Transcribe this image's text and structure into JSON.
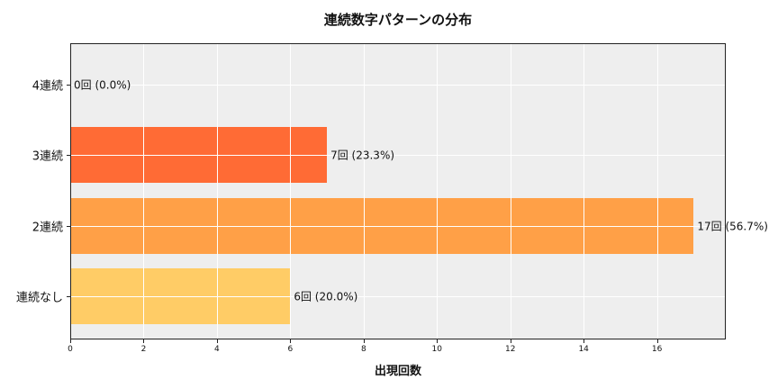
{
  "chart_data": {
    "type": "bar",
    "orientation": "horizontal",
    "title": "連続数字パターンの分布",
    "xlabel": "出現回数",
    "ylabel": "",
    "categories": [
      "4連続",
      "3連続",
      "2連続",
      "連続なし"
    ],
    "values": [
      0,
      7,
      17,
      6
    ],
    "percentages": [
      0.0,
      23.3,
      56.7,
      20.0
    ],
    "data_labels": [
      "0回 (0.0%)",
      "7回 (23.3%)",
      "17回 (56.7%)",
      "6回 (20.0%)"
    ],
    "colors": [
      "#FF4F1F",
      "#FF6B35",
      "#FFA047",
      "#FFCC66"
    ],
    "xlim": [
      0,
      17.85
    ],
    "xticks": [
      0,
      2,
      4,
      6,
      8,
      10,
      12,
      14,
      16
    ],
    "grid": true,
    "background": "#EEEEEE",
    "legend": null
  },
  "labels": {
    "title": "連続数字パターンの分布",
    "xlabel": "出現回数",
    "cat0": "4連続",
    "cat1": "3連続",
    "cat2": "2連続",
    "cat3": "連続なし",
    "val0": "0回 (0.0%)",
    "val1": "7回 (23.3%)",
    "val2": "17回 (56.7%)",
    "val3": "6回 (20.0%)",
    "xt0": "0",
    "xt1": "2",
    "xt2": "4",
    "xt3": "6",
    "xt4": "8",
    "xt5": "10",
    "xt6": "12",
    "xt7": "14",
    "xt8": "16"
  }
}
